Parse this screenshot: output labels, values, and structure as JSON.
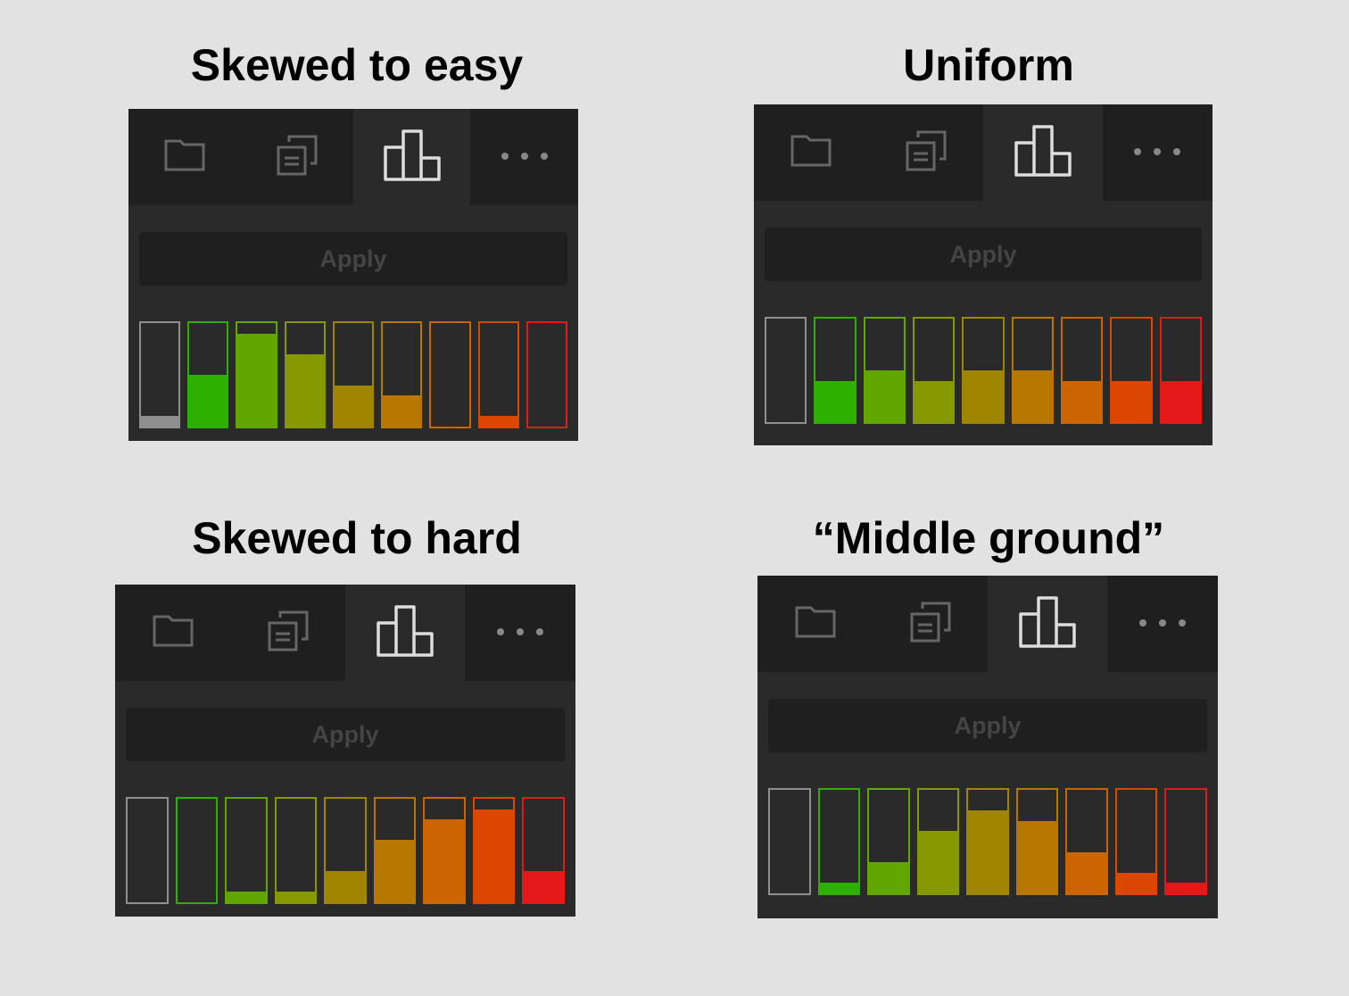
{
  "apply_label": "Apply",
  "tab_icons": [
    "folder-icon",
    "documents-icon",
    "bar-chart-icon",
    "more-dots-icon"
  ],
  "bar_colors": [
    "#8f8f8f",
    "#2db000",
    "#62a600",
    "#879900",
    "#a08600",
    "#b87800",
    "#cc6400",
    "#db4600",
    "#e51919"
  ],
  "panels": [
    {
      "title": "Skewed to easy",
      "levels": [
        0.1,
        0.5,
        0.9,
        0.7,
        0.4,
        0.3,
        0,
        0.1,
        0
      ]
    },
    {
      "title": "Uniform",
      "levels": [
        0,
        0.4,
        0.5,
        0.4,
        0.5,
        0.5,
        0.4,
        0.4,
        0.4
      ]
    },
    {
      "title": "Skewed to hard",
      "levels": [
        0,
        0,
        0.1,
        0.1,
        0.3,
        0.6,
        0.8,
        0.9,
        0.3
      ]
    },
    {
      "title": "“Middle ground”",
      "levels": [
        0,
        0.1,
        0.3,
        0.6,
        0.8,
        0.7,
        0.4,
        0.2,
        0.1
      ]
    }
  ]
}
